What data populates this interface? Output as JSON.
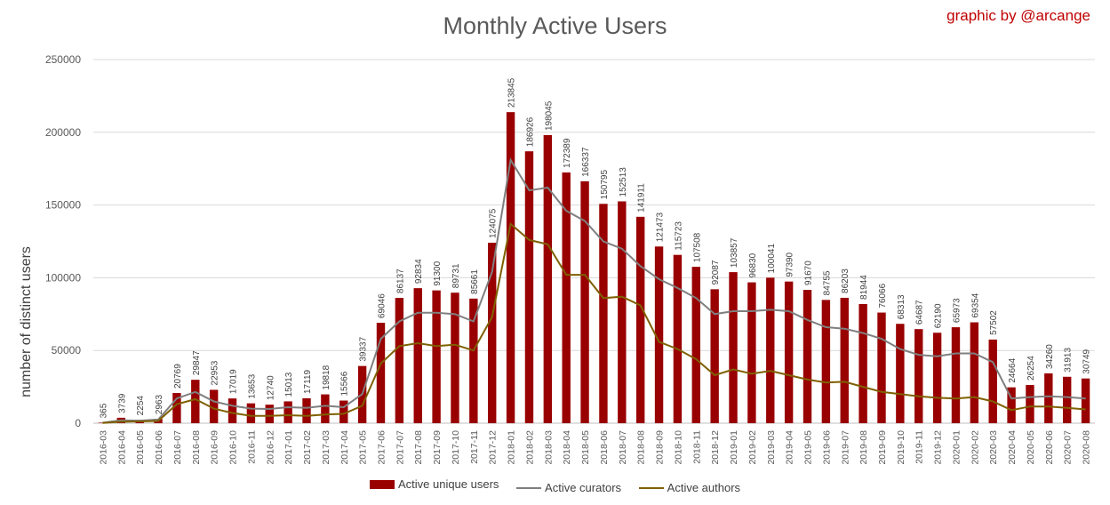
{
  "chart_data": {
    "type": "bar",
    "title": "Monthly Active Users",
    "credit": "graphic by @arcange",
    "ylabel": "number of distinct users",
    "xlabel": "",
    "ylim": [
      0,
      250000
    ],
    "yticks": [
      "0",
      "50000",
      "100000",
      "150000",
      "200000",
      "250000"
    ],
    "grid": true,
    "legend_position": "bottom",
    "categories": [
      "2016-03",
      "2016-04",
      "2016-05",
      "2016-06",
      "2016-07",
      "2016-08",
      "2016-09",
      "2016-10",
      "2016-11",
      "2016-12",
      "2017-01",
      "2017-02",
      "2017-03",
      "2017-04",
      "2017-05",
      "2017-06",
      "2017-07",
      "2017-08",
      "2017-09",
      "2017-10",
      "2017-11",
      "2017-12",
      "2018-01",
      "2018-02",
      "2018-03",
      "2018-04",
      "2018-05",
      "2018-06",
      "2018-07",
      "2018-08",
      "2018-09",
      "2018-10",
      "2018-11",
      "2018-12",
      "2019-01",
      "2019-02",
      "2019-03",
      "2019-04",
      "2019-05",
      "2019-06",
      "2019-07",
      "2019-08",
      "2019-09",
      "2019-10",
      "2019-11",
      "2019-12",
      "2020-01",
      "2020-02",
      "2020-03",
      "2020-04",
      "2020-05",
      "2020-06",
      "2020-07",
      "2020-08"
    ],
    "series": [
      {
        "name": "Active unique users",
        "kind": "bar",
        "color": "#990000",
        "values": [
          365,
          3739,
          2254,
          2963,
          20769,
          29847,
          22953,
          17019,
          13653,
          12740,
          15013,
          17119,
          19818,
          15566,
          39337,
          69046,
          86137,
          92834,
          91300,
          89731,
          85661,
          124075,
          213845,
          186926,
          198045,
          172389,
          166337,
          150795,
          152513,
          141911,
          121473,
          115723,
          107508,
          92087,
          103857,
          96830,
          100041,
          97390,
          91670,
          84755,
          86203,
          81944,
          76066,
          68313,
          64687,
          62190,
          65973,
          69354,
          57502,
          24664,
          26254,
          34260,
          31913,
          30749
        ],
        "labels": [
          "365",
          "3739",
          "2254",
          "2963",
          "20769",
          "29847",
          "22953",
          "17019",
          "13653",
          "12740",
          "15013",
          "17119",
          "19818",
          "15566",
          "39337",
          "69046",
          "86137",
          "92834",
          "91300",
          "89731",
          "85661",
          "124075",
          "213845",
          "186926",
          "198045",
          "172389",
          "166337",
          "150795",
          "152513",
          "141911",
          "121473",
          "115723",
          "107508",
          "92087",
          "103857",
          "96830",
          "100041",
          "97390",
          "91670",
          "84755",
          "86203",
          "81944",
          "76066",
          "68313",
          "64687",
          "62190",
          "65973",
          "69354",
          "57502",
          "24664",
          "26254",
          "34260",
          "31913",
          "30749"
        ]
      },
      {
        "name": "Active curators",
        "kind": "line",
        "color": "#7f7f7f",
        "values": [
          300,
          2000,
          1800,
          2500,
          17000,
          21500,
          15000,
          12000,
          10000,
          9800,
          11000,
          10500,
          12000,
          11000,
          20000,
          58000,
          70000,
          76000,
          76000,
          75000,
          70000,
          104000,
          181000,
          160000,
          162000,
          146000,
          139000,
          125000,
          120000,
          108000,
          99000,
          93000,
          86000,
          75000,
          77000,
          77000,
          78000,
          77000,
          71000,
          66000,
          65000,
          62000,
          58000,
          51000,
          47000,
          46000,
          48000,
          48000,
          42000,
          17000,
          18000,
          18500,
          18000,
          17000
        ]
      },
      {
        "name": "Active authors",
        "kind": "line",
        "color": "#7f6000",
        "values": [
          200,
          1000,
          1200,
          1500,
          13000,
          16500,
          10000,
          7000,
          5000,
          5000,
          5500,
          5000,
          6000,
          6500,
          12000,
          41000,
          53000,
          55000,
          53000,
          54000,
          50000,
          73000,
          137000,
          126000,
          123000,
          102000,
          102000,
          86000,
          87000,
          81000,
          56000,
          51000,
          44000,
          33000,
          37000,
          34000,
          36000,
          33000,
          30000,
          28000,
          28500,
          25000,
          21500,
          20000,
          18500,
          17500,
          17000,
          18000,
          15000,
          9000,
          11500,
          11500,
          10500,
          9500
        ]
      }
    ]
  }
}
